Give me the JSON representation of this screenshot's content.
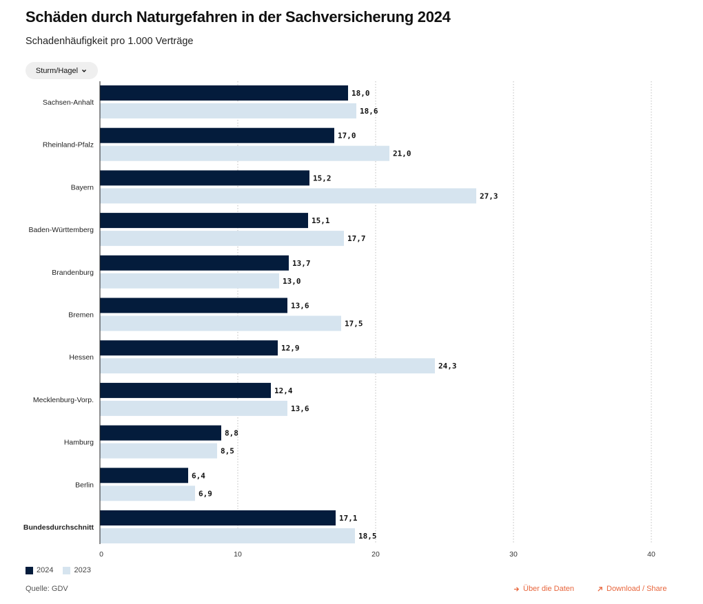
{
  "header": {
    "title": "Schäden durch Naturgefahren in der Sachversicherung 2024",
    "subtitle": "Schadenhäufigkeit pro 1.000 Verträge"
  },
  "filter": {
    "selected": "Sturm/Hagel",
    "icon": "chevron-down-icon"
  },
  "colors": {
    "series_2024": "#041c3c",
    "series_2023": "#d6e4ef",
    "link": "#e8663d"
  },
  "chart_data": {
    "type": "bar",
    "orientation": "horizontal",
    "categories": [
      "Sachsen-Anhalt",
      "Rheinland-Pfalz",
      "Bayern",
      "Baden-Württemberg",
      "Brandenburg",
      "Bremen",
      "Hessen",
      "Mecklenburg-Vorp.",
      "Hamburg",
      "Berlin",
      "Bundesdurchschnitt"
    ],
    "series": [
      {
        "name": "2024",
        "values": [
          18.0,
          17.0,
          15.2,
          15.1,
          13.7,
          13.6,
          12.9,
          12.4,
          8.8,
          6.4,
          17.1
        ],
        "labels": [
          "18,0",
          "17,0",
          "15,2",
          "15,1",
          "13,7",
          "13,6",
          "12,9",
          "12,4",
          "8,8",
          "6,4",
          "17,1"
        ]
      },
      {
        "name": "2023",
        "values": [
          18.6,
          21.0,
          27.3,
          17.7,
          13.0,
          17.5,
          24.3,
          13.6,
          8.5,
          6.9,
          18.5
        ],
        "labels": [
          "18,6",
          "21,0",
          "27,3",
          "17,7",
          "13,0",
          "17,5",
          "24,3",
          "13,6",
          "8,5",
          "6,9",
          "18,5"
        ]
      }
    ],
    "xlim": [
      0,
      40
    ],
    "xticks": [
      0,
      10,
      20,
      30,
      40
    ],
    "grid": true,
    "legend": "bottom-left"
  },
  "footer": {
    "source": "Quelle: GDV",
    "data_link": "Über die Daten",
    "share_link": "Download / Share"
  }
}
